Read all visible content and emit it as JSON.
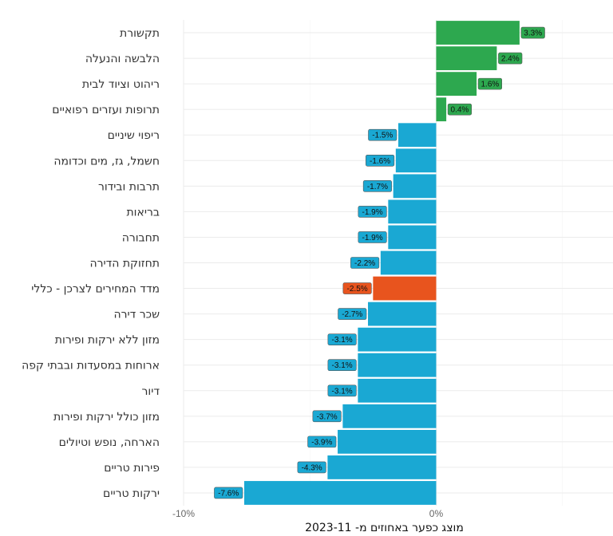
{
  "chart_data": {
    "type": "bar",
    "orientation": "horizontal",
    "xlabel": "מוצג כפער באחוזים מ- 2023-11",
    "ylabel": "",
    "xlim": [
      -10,
      7
    ],
    "x_ticks": [
      {
        "value": -10,
        "label": "-10%"
      },
      {
        "value": 0,
        "label": "0%"
      }
    ],
    "grid": true,
    "legend": "none",
    "colors": {
      "positive": "#2da84f",
      "negative": "#1aa8d3",
      "highlight": "#e8541e",
      "gridline": "#ebebeb"
    },
    "categories": [
      "תקשורת",
      "הלבשה והנעלה",
      "ריהוט וציוד לבית",
      "תרופות ועזרים רפואיים",
      "ריפוי שיניים",
      "חשמל, גז, מים וכדומה",
      "תרבות ובידור",
      "בריאות",
      "תחבורה",
      "תחזוקת הדירה",
      "מדד המחירים לצרכן - כללי",
      "שכר דירה",
      "מזון ללא ירקות ופירות",
      "ארוחות במסעדות ובבתי קפה",
      "דיור",
      "מזון כולל ירקות ופירות",
      "הארחה, נופש וטיולים",
      "פירות טריים",
      "ירקות טריים"
    ],
    "values": [
      3.3,
      2.4,
      1.6,
      0.4,
      -1.5,
      -1.6,
      -1.7,
      -1.9,
      -1.9,
      -2.2,
      -2.5,
      -2.7,
      -3.1,
      -3.1,
      -3.1,
      -3.7,
      -3.9,
      -4.3,
      -7.6
    ],
    "data_labels": [
      "3.3%",
      "2.4%",
      "1.6%",
      "0.4%",
      "-1.5%",
      "-1.6%",
      "-1.7%",
      "-1.9%",
      "-1.9%",
      "-2.2%",
      "-2.5%",
      "-2.7%",
      "-3.1%",
      "-3.1%",
      "-3.1%",
      "-3.7%",
      "-3.9%",
      "-4.3%",
      "-7.6%"
    ],
    "highlight_category": "מדד המחירים לצרכן - כללי"
  }
}
